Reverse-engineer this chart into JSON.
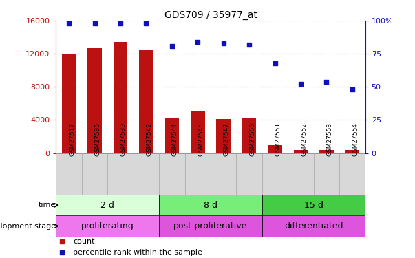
{
  "title": "GDS709 / 35977_at",
  "samples": [
    "GSM27517",
    "GSM27535",
    "GSM27539",
    "GSM27542",
    "GSM27544",
    "GSM27545",
    "GSM27547",
    "GSM27550",
    "GSM27551",
    "GSM27552",
    "GSM27553",
    "GSM27554"
  ],
  "counts": [
    12000,
    12700,
    13400,
    12500,
    4200,
    5000,
    4100,
    4200,
    950,
    350,
    400,
    350
  ],
  "percentile": [
    98,
    98,
    98,
    98,
    81,
    84,
    83,
    82,
    68,
    52,
    54,
    48
  ],
  "ylim_left": [
    0,
    16000
  ],
  "ylim_right": [
    0,
    100
  ],
  "yticks_left": [
    0,
    4000,
    8000,
    12000,
    16000
  ],
  "yticks_right": [
    0,
    25,
    50,
    75,
    100
  ],
  "bar_color": "#bb1111",
  "dot_color": "#1111bb",
  "time_groups": [
    {
      "label": "2 d",
      "start": 0,
      "end": 4,
      "color": "#d8ffd8"
    },
    {
      "label": "8 d",
      "start": 4,
      "end": 8,
      "color": "#77ee77"
    },
    {
      "label": "15 d",
      "start": 8,
      "end": 12,
      "color": "#44cc44"
    }
  ],
  "stage_groups": [
    {
      "label": "proliferating",
      "start": 0,
      "end": 4,
      "color": "#ee77ee"
    },
    {
      "label": "post-proliferative",
      "start": 4,
      "end": 8,
      "color": "#dd55dd"
    },
    {
      "label": "differentiated",
      "start": 8,
      "end": 12,
      "color": "#dd55dd"
    }
  ],
  "legend_count_color": "#bb1111",
  "legend_pct_color": "#1111bb",
  "bg_color": "#ffffff",
  "grid_color": "#777777",
  "tick_label_color_left": "#bb1111",
  "tick_label_color_right": "#1111bb",
  "sample_row_color": "#d8d8d8",
  "sample_row_border": "#aaaaaa"
}
